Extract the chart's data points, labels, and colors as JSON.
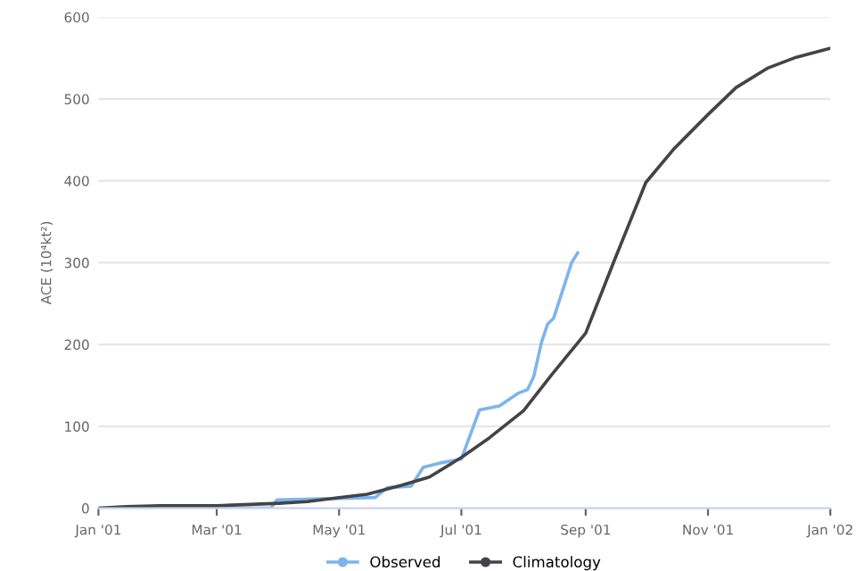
{
  "chart_data": {
    "type": "line",
    "ylabel": "ACE (10⁴kt²)",
    "xlim": [
      "2001-01-01",
      "2002-01-01"
    ],
    "ylim": [
      0,
      600
    ],
    "yticks": [
      0,
      100,
      200,
      300,
      400,
      500,
      600
    ],
    "xticks": [
      {
        "value": "2001-01-01",
        "label": "Jan '01"
      },
      {
        "value": "2001-03-01",
        "label": "Mar '01"
      },
      {
        "value": "2001-05-01",
        "label": "May '01"
      },
      {
        "value": "2001-07-01",
        "label": "Jul '01"
      },
      {
        "value": "2001-09-01",
        "label": "Sep '01"
      },
      {
        "value": "2001-11-01",
        "label": "Nov '01"
      },
      {
        "value": "2002-01-01",
        "label": "Jan '02"
      }
    ],
    "grid": "y",
    "legend": "bottom",
    "series": [
      {
        "name": "Observed",
        "color": "#7cb5ec",
        "x": [
          "2001-01-01",
          "2001-03-28",
          "2001-03-31",
          "2001-05-19",
          "2001-05-25",
          "2001-06-06",
          "2001-06-12",
          "2001-06-20",
          "2001-07-01",
          "2001-07-10",
          "2001-07-20",
          "2001-07-29",
          "2001-08-03",
          "2001-08-06",
          "2001-08-10",
          "2001-08-13",
          "2001-08-16",
          "2001-08-25",
          "2001-08-28"
        ],
        "values": [
          0,
          0,
          10,
          13,
          25,
          27,
          50,
          55,
          60,
          120,
          125,
          140,
          145,
          160,
          203,
          225,
          232,
          300,
          312
        ]
      },
      {
        "name": "Climatology",
        "color": "#434348",
        "x": [
          "2001-01-01",
          "2001-01-15",
          "2001-02-01",
          "2001-03-01",
          "2001-04-01",
          "2001-04-15",
          "2001-05-01",
          "2001-05-15",
          "2001-06-01",
          "2001-06-15",
          "2001-07-01",
          "2001-07-15",
          "2001-08-01",
          "2001-08-15",
          "2001-09-01",
          "2001-09-15",
          "2001-10-01",
          "2001-10-15",
          "2001-11-01",
          "2001-11-15",
          "2001-12-01",
          "2001-12-15",
          "2002-01-01"
        ],
        "values": [
          0,
          2,
          3,
          3,
          6,
          8,
          13,
          17,
          28,
          38,
          62,
          86,
          119,
          163,
          214,
          301,
          398,
          439,
          481,
          514,
          538,
          551,
          562
        ]
      }
    ]
  }
}
